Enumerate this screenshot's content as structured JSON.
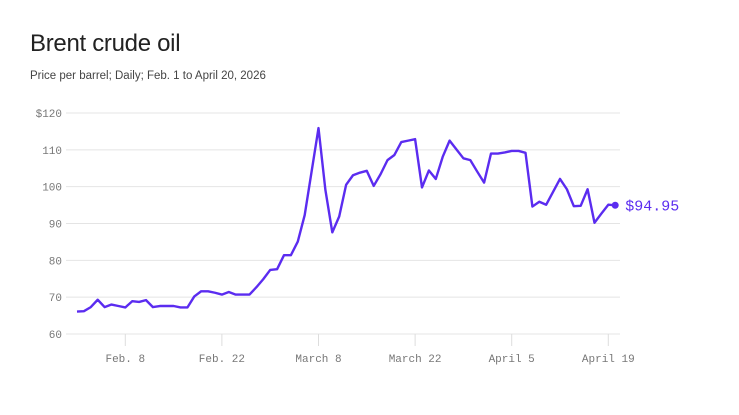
{
  "chart_data": {
    "type": "line",
    "title": "Brent crude oil",
    "subtitle": "Price per barrel; Daily; Feb. 1 to April 20, 2026",
    "start_date": "2026-02-01",
    "end_date": "2026-04-20",
    "ylim": [
      60,
      120
    ],
    "yticks": [
      60,
      70,
      80,
      90,
      100,
      110,
      120
    ],
    "ytick_labels": [
      "60",
      "70",
      "80",
      "90",
      "100",
      "110",
      "$120"
    ],
    "xticks": [
      "2026-02-08",
      "2026-02-22",
      "2026-03-08",
      "2026-03-22",
      "2026-04-05",
      "2026-04-19"
    ],
    "xtick_labels": [
      "Feb. 8",
      "Feb. 22",
      "March 8",
      "March 22",
      "April 5",
      "April 19"
    ],
    "grid": "horizontal",
    "color": "#5b2cf0",
    "end_label": "$94.95",
    "values": [
      66.1,
      66.2,
      67.3,
      69.3,
      67.3,
      68.0,
      67.6,
      67.2,
      68.9,
      68.7,
      69.2,
      67.3,
      67.6,
      67.6,
      67.6,
      67.2,
      67.2,
      70.2,
      71.6,
      71.6,
      71.2,
      70.7,
      71.4,
      70.7,
      70.7,
      70.7,
      72.7,
      74.9,
      77.4,
      77.6,
      81.4,
      81.4,
      85.1,
      92.3,
      104.1,
      115.9,
      99.1,
      87.6,
      91.9,
      100.5,
      103.1,
      103.8,
      104.3,
      100.2,
      103.4,
      107.2,
      108.6,
      112.1,
      112.5,
      112.9,
      99.8,
      104.4,
      102.1,
      108.1,
      112.5,
      110.1,
      107.7,
      107.2,
      104.1,
      101.1,
      109.0,
      109.0,
      109.3,
      109.7,
      109.7,
      109.2,
      94.6,
      95.9,
      95.1,
      98.6,
      102.1,
      99.3,
      94.7,
      94.8,
      99.3,
      90.2,
      92.7,
      95.1,
      94.95
    ]
  }
}
